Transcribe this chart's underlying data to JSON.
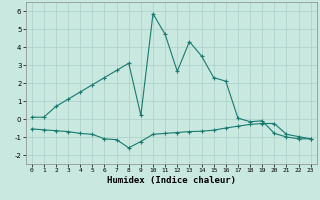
{
  "xlabel": "Humidex (Indice chaleur)",
  "curve1_x": [
    0,
    1,
    2,
    3,
    4,
    5,
    6,
    7,
    8,
    9,
    10,
    11,
    12,
    13,
    14,
    15,
    16,
    17,
    18,
    19,
    20,
    21,
    22,
    23
  ],
  "curve1_y": [
    0.1,
    0.1,
    0.7,
    1.1,
    1.5,
    1.9,
    2.3,
    2.7,
    3.1,
    0.2,
    5.85,
    4.7,
    2.65,
    4.3,
    3.5,
    2.3,
    2.1,
    0.05,
    -0.15,
    -0.1,
    -0.8,
    -1.0,
    -1.1,
    -1.1
  ],
  "curve2_x": [
    0,
    1,
    2,
    3,
    4,
    5,
    6,
    7,
    8,
    9,
    10,
    11,
    12,
    13,
    14,
    15,
    16,
    17,
    18,
    19,
    20,
    21,
    22,
    23
  ],
  "curve2_y": [
    -0.55,
    -0.6,
    -0.65,
    -0.7,
    -0.8,
    -0.85,
    -1.1,
    -1.15,
    -1.6,
    -1.25,
    -0.85,
    -0.8,
    -0.75,
    -0.7,
    -0.68,
    -0.62,
    -0.5,
    -0.4,
    -0.3,
    -0.25,
    -0.25,
    -0.85,
    -0.98,
    -1.1
  ],
  "line_color": "#1a7a6e",
  "bg_color": "#c8e8e0",
  "grid_color": "#aacfc8",
  "ylim": [
    -2.5,
    6.5
  ],
  "xlim": [
    -0.5,
    23.5
  ],
  "yticks": [
    -2,
    -1,
    0,
    1,
    2,
    3,
    4,
    5,
    6
  ],
  "xticks": [
    0,
    1,
    2,
    3,
    4,
    5,
    6,
    7,
    8,
    9,
    10,
    11,
    12,
    13,
    14,
    15,
    16,
    17,
    18,
    19,
    20,
    21,
    22,
    23
  ]
}
